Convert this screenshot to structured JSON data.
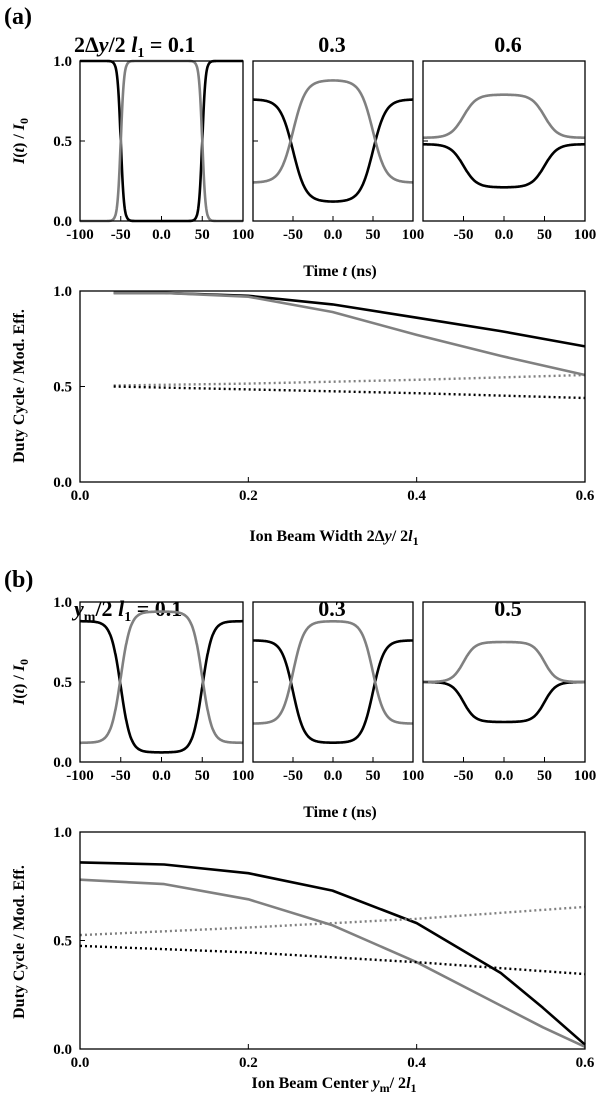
{
  "colors": {
    "black_series": "#000000",
    "gray_series": "#808080"
  },
  "panels": {
    "a": {
      "letter": "(a)",
      "top_ylabel": "I(t) / I0",
      "top_xlabel": "Time t (ns)",
      "bottom_ylabel": "Duty Cycle / Mod. Eff.",
      "bottom_xlabel": "Ion Beam Width 2Δy/ 2l1",
      "subplot_titles": [
        "2Δy/2 l1 = 0.1",
        "0.3",
        "0.6"
      ]
    },
    "b": {
      "letter": "(b)",
      "top_ylabel": "I(t) / I0",
      "top_xlabel": "Time t (ns)",
      "bottom_ylabel": "Duty Cycle / Mod. Eff.",
      "bottom_xlabel": "Ion Beam Center ym/ 2l1",
      "subplot_titles": [
        "ym/2 l1 = 0.1",
        "0.3",
        "0.5"
      ]
    }
  },
  "chart_data": [
    {
      "type": "line",
      "panel": "a",
      "subplot": 1,
      "title": "2Δy/2 l1 = 0.1",
      "xlabel": "",
      "ylabel": "I(t) / I0",
      "xlim": [
        -100,
        100
      ],
      "ylim": [
        0,
        1
      ],
      "xticks": [
        -100,
        -50,
        0,
        50,
        100
      ],
      "yticks": [
        0.0,
        0.5,
        1.0
      ],
      "series": [
        {
          "color": "black",
          "outer": 1.0,
          "inner": 0.0,
          "edges": [
            -50,
            50
          ],
          "width": 2
        },
        {
          "color": "gray",
          "outer": 0.0,
          "inner": 1.0,
          "edges": [
            -50,
            50
          ],
          "width": 2
        }
      ]
    },
    {
      "type": "line",
      "panel": "a",
      "subplot": 2,
      "title": "0.3",
      "xlabel": "",
      "ylabel": "",
      "xlim": [
        -100,
        100
      ],
      "ylim": [
        0,
        1
      ],
      "xticks": [
        -50,
        0,
        50,
        100
      ],
      "yticks": [],
      "series": [
        {
          "color": "black",
          "outer": 0.76,
          "inner": 0.12,
          "edges": [
            -50,
            50
          ],
          "width": 8
        },
        {
          "color": "gray",
          "outer": 0.24,
          "inner": 0.88,
          "edges": [
            -50,
            50
          ],
          "width": 8
        }
      ]
    },
    {
      "type": "line",
      "panel": "a",
      "subplot": 3,
      "title": "0.6",
      "xlabel": "",
      "ylabel": "",
      "xlim": [
        -100,
        100
      ],
      "ylim": [
        0,
        1
      ],
      "xticks": [
        -50,
        0,
        50,
        100
      ],
      "yticks": [],
      "series": [
        {
          "color": "black",
          "outer": 0.48,
          "inner": 0.21,
          "edges": [
            -50,
            50
          ],
          "width": 8
        },
        {
          "color": "gray",
          "outer": 0.52,
          "inner": 0.79,
          "edges": [
            -50,
            50
          ],
          "width": 8
        }
      ]
    },
    {
      "type": "line",
      "panel": "a",
      "subplot": "bottom",
      "title": "",
      "xlabel": "Ion Beam Width 2Δy/ 2l1",
      "ylabel": "Duty Cycle / Mod. Eff.",
      "xlim": [
        0,
        0.6
      ],
      "ylim": [
        0,
        1
      ],
      "xticks": [
        0.0,
        0.2,
        0.4,
        0.6
      ],
      "yticks": [
        0.0,
        0.5,
        1.0
      ],
      "series": [
        {
          "color": "black",
          "style": "solid",
          "x": [
            0.04,
            0.1,
            0.2,
            0.3,
            0.4,
            0.5,
            0.6
          ],
          "y": [
            0.99,
            0.99,
            0.975,
            0.93,
            0.86,
            0.79,
            0.71
          ]
        },
        {
          "color": "gray",
          "style": "solid",
          "x": [
            0.04,
            0.1,
            0.2,
            0.3,
            0.4,
            0.5,
            0.6
          ],
          "y": [
            0.99,
            0.99,
            0.97,
            0.89,
            0.77,
            0.66,
            0.56
          ]
        },
        {
          "color": "gray",
          "style": "dotted",
          "x": [
            0.04,
            0.2,
            0.4,
            0.6
          ],
          "y": [
            0.505,
            0.515,
            0.535,
            0.56
          ]
        },
        {
          "color": "black",
          "style": "dotted",
          "x": [
            0.04,
            0.2,
            0.4,
            0.6
          ],
          "y": [
            0.5,
            0.485,
            0.465,
            0.44
          ]
        }
      ]
    },
    {
      "type": "line",
      "panel": "b",
      "subplot": 1,
      "title": "ym/2 l1 = 0.1",
      "xlabel": "",
      "ylabel": "I(t) / I0",
      "xlim": [
        -100,
        100
      ],
      "ylim": [
        0,
        1
      ],
      "xticks": [
        -100,
        -50,
        0,
        50,
        100
      ],
      "yticks": [
        0.0,
        0.5,
        1.0
      ],
      "series": [
        {
          "color": "black",
          "outer": 0.88,
          "inner": 0.06,
          "edges": [
            -50,
            50
          ],
          "width": 6
        },
        {
          "color": "gray",
          "outer": 0.12,
          "inner": 0.94,
          "edges": [
            -50,
            50
          ],
          "width": 6
        }
      ]
    },
    {
      "type": "line",
      "panel": "b",
      "subplot": 2,
      "title": "0.3",
      "xlabel": "",
      "ylabel": "",
      "xlim": [
        -100,
        100
      ],
      "ylim": [
        0,
        1
      ],
      "xticks": [
        -50,
        0,
        50,
        100
      ],
      "yticks": [],
      "series": [
        {
          "color": "black",
          "outer": 0.76,
          "inner": 0.12,
          "edges": [
            -50,
            50
          ],
          "width": 7
        },
        {
          "color": "gray",
          "outer": 0.24,
          "inner": 0.88,
          "edges": [
            -50,
            50
          ],
          "width": 7
        }
      ]
    },
    {
      "type": "line",
      "panel": "b",
      "subplot": 3,
      "title": "0.5",
      "xlabel": "",
      "ylabel": "",
      "xlim": [
        -100,
        100
      ],
      "ylim": [
        0,
        1
      ],
      "xticks": [
        -50,
        0,
        50,
        100
      ],
      "yticks": [],
      "series": [
        {
          "color": "black",
          "outer": 0.5,
          "inner": 0.25,
          "edges": [
            -50,
            50
          ],
          "width": 7
        },
        {
          "color": "gray",
          "outer": 0.5,
          "inner": 0.75,
          "edges": [
            -50,
            50
          ],
          "width": 7
        }
      ]
    },
    {
      "type": "line",
      "panel": "b",
      "subplot": "bottom",
      "title": "",
      "xlabel": "Ion Beam Center ym/ 2l1",
      "ylabel": "Duty Cycle / Mod. Eff.",
      "xlim": [
        0,
        0.6
      ],
      "ylim": [
        0,
        1
      ],
      "xticks": [
        0.0,
        0.2,
        0.4,
        0.6
      ],
      "yticks": [
        0.0,
        0.5,
        1.0
      ],
      "series": [
        {
          "color": "black",
          "style": "solid",
          "x": [
            0.0,
            0.1,
            0.2,
            0.3,
            0.4,
            0.5,
            0.55,
            0.6
          ],
          "y": [
            0.86,
            0.85,
            0.81,
            0.73,
            0.58,
            0.35,
            0.19,
            0.02
          ]
        },
        {
          "color": "gray",
          "style": "solid",
          "x": [
            0.0,
            0.1,
            0.2,
            0.3,
            0.4,
            0.5,
            0.55,
            0.6
          ],
          "y": [
            0.78,
            0.76,
            0.69,
            0.57,
            0.4,
            0.2,
            0.1,
            0.01
          ]
        },
        {
          "color": "gray",
          "style": "dotted",
          "x": [
            0.0,
            0.2,
            0.4,
            0.6
          ],
          "y": [
            0.525,
            0.56,
            0.6,
            0.655
          ]
        },
        {
          "color": "black",
          "style": "dotted",
          "x": [
            0.0,
            0.2,
            0.4,
            0.6
          ],
          "y": [
            0.475,
            0.445,
            0.4,
            0.345
          ]
        }
      ]
    }
  ]
}
